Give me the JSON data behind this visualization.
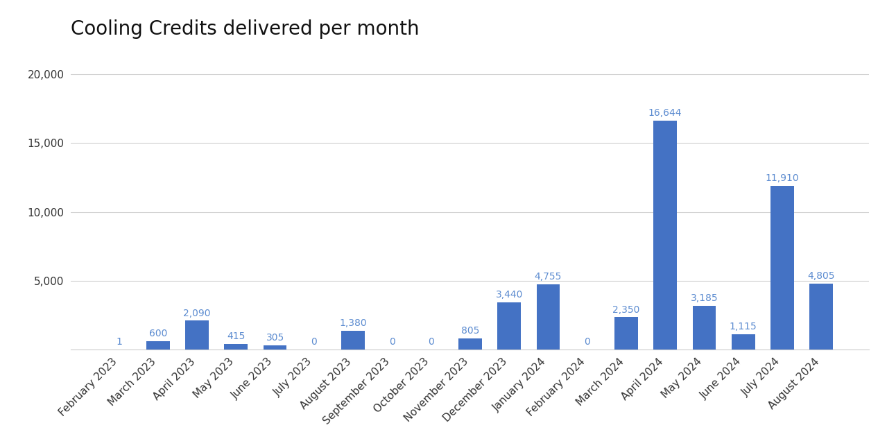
{
  "title": "Cooling Credits delivered per month",
  "categories": [
    "February 2023",
    "March 2023",
    "April 2023",
    "May 2023",
    "June 2023",
    "July 2023",
    "August 2023",
    "September 2023",
    "October 2023",
    "November 2023",
    "December 2023",
    "January 2024",
    "February 2024",
    "March 2024",
    "April 2024",
    "May 2024",
    "June 2024",
    "July 2024",
    "August 2024"
  ],
  "values": [
    1,
    600,
    2090,
    415,
    305,
    0,
    1380,
    0,
    0,
    805,
    3440,
    4755,
    0,
    2350,
    16644,
    3185,
    1115,
    11910,
    4805
  ],
  "bar_color": "#4472c4",
  "label_color": "#5b8bd0",
  "title_fontsize": 20,
  "tick_fontsize": 11,
  "label_fontsize": 10,
  "ylim": [
    0,
    21500
  ],
  "yticks": [
    0,
    5000,
    10000,
    15000,
    20000
  ],
  "background_color": "#ffffff",
  "grid_color": "#d0d0d0"
}
